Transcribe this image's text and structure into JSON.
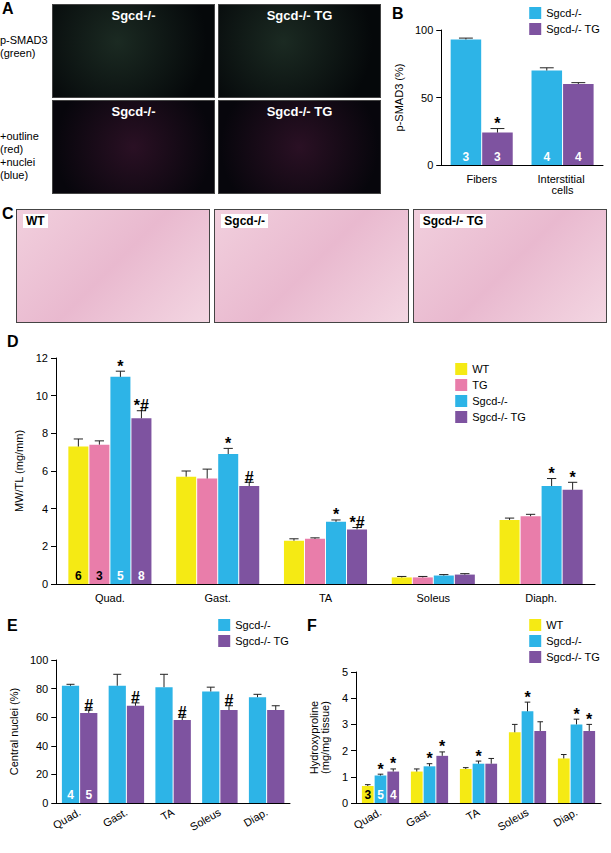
{
  "images": [
    {
      "panel": "A",
      "rows": [
        {
          "labels": [
            "p-SMAD3",
            "(green)"
          ],
          "panels": [
            "Sgcd-/-",
            "Sgcd-/- TG"
          ]
        },
        {
          "labels": [
            "+outline",
            "(red)",
            "+nuclei",
            "(blue)"
          ],
          "panels": [
            "Sgcd-/-",
            "Sgcd-/- TG"
          ]
        }
      ]
    },
    {
      "panel": "C",
      "panels": [
        "WT",
        "Sgcd-/-",
        "Sgcd-/- TG"
      ]
    }
  ],
  "chart_data": [
    {
      "type": "bar",
      "title": "B",
      "ylabel": "p-SMAD3 (%)",
      "categories": [
        "Fibers",
        "Interstitial cells"
      ],
      "series": [
        {
          "name": "Sgcd-/-",
          "color": "#2DB4E7",
          "values": [
            93,
            70
          ],
          "errors": [
            1,
            2
          ],
          "n": [
            3,
            4
          ]
        },
        {
          "name": "Sgcd-/- TG",
          "color": "#7E53A0",
          "values": [
            24,
            60
          ],
          "errors": [
            3,
            1
          ],
          "n": [
            3,
            4
          ],
          "marks": [
            "*",
            null
          ]
        }
      ],
      "ylim": [
        0,
        100
      ],
      "yticks": [
        0,
        50,
        100
      ],
      "grid": false,
      "legend": "top-right"
    },
    {
      "type": "bar",
      "title": "D",
      "ylabel": "MW/TL (mg/mm)",
      "categories": [
        "Quad.",
        "Gast.",
        "TA",
        "Soleus",
        "Diaph."
      ],
      "series": [
        {
          "name": "WT",
          "color": "#F5EA14",
          "values": [
            7.3,
            5.7,
            2.3,
            0.35,
            3.4
          ],
          "errors": [
            0.4,
            0.3,
            0.1,
            0.05,
            0.1
          ],
          "n": [
            6,
            null,
            null,
            null,
            null
          ]
        },
        {
          "name": "TG",
          "color": "#E97DAA",
          "values": [
            7.4,
            5.6,
            2.4,
            0.35,
            3.6
          ],
          "errors": [
            0.2,
            0.5,
            0.05,
            0.05,
            0.1
          ],
          "n": [
            3,
            null,
            null,
            null,
            null
          ]
        },
        {
          "name": "Sgcd-/-",
          "color": "#2DB4E7",
          "values": [
            11.0,
            6.9,
            3.3,
            0.45,
            5.2
          ],
          "errors": [
            0.3,
            0.3,
            0.1,
            0.05,
            0.4
          ],
          "n": [
            5,
            null,
            null,
            null,
            null
          ],
          "marks": [
            "*",
            "*",
            "*",
            null,
            "*"
          ]
        },
        {
          "name": "Sgcd-/- TG",
          "color": "#7E53A0",
          "values": [
            8.8,
            5.2,
            2.9,
            0.5,
            5.0
          ],
          "errors": [
            0.4,
            0.2,
            0.1,
            0.05,
            0.4
          ],
          "n": [
            8,
            null,
            null,
            null,
            null
          ],
          "marks": [
            "*#",
            "#",
            "*#",
            null,
            "*"
          ]
        }
      ],
      "ylim": [
        0,
        12
      ],
      "yticks": [
        0,
        2,
        4,
        6,
        8,
        10,
        12
      ],
      "grid": false,
      "legend": "top-right"
    },
    {
      "type": "bar",
      "title": "E",
      "ylabel": "Central nuclei (%)",
      "categories": [
        "Quad.",
        "Gast.",
        "TA",
        "Soleus",
        "Diap."
      ],
      "series": [
        {
          "name": "Sgcd-/-",
          "color": "#2DB4E7",
          "values": [
            82,
            82,
            81,
            78,
            74
          ],
          "errors": [
            1,
            8,
            9,
            3,
            2
          ],
          "n": [
            4,
            null,
            null,
            null,
            null
          ]
        },
        {
          "name": "Sgcd-/- TG",
          "color": "#7E53A0",
          "values": [
            63,
            68,
            58,
            65,
            65
          ],
          "errors": [
            2,
            2,
            2,
            3,
            3
          ],
          "n": [
            5,
            null,
            null,
            null,
            null
          ],
          "marks": [
            "#",
            "#",
            "#",
            "#",
            null
          ]
        }
      ],
      "ylim": [
        0,
        100
      ],
      "yticks": [
        0,
        20,
        40,
        60,
        80,
        100
      ],
      "grid": false,
      "legend": "top-right"
    },
    {
      "type": "bar",
      "title": "F",
      "ylabel": "Hydroxyproline\n(mg/mg tissue)",
      "categories": [
        "Quad.",
        "Gast.",
        "TA",
        "Soleus",
        "Diap."
      ],
      "series": [
        {
          "name": "WT",
          "color": "#F5EA14",
          "values": [
            0.65,
            1.2,
            1.3,
            2.7,
            1.7
          ],
          "errors": [
            0.05,
            0.1,
            0.05,
            0.3,
            0.15
          ],
          "n": [
            3,
            null,
            null,
            null,
            null
          ]
        },
        {
          "name": "Sgcd-/-",
          "color": "#2DB4E7",
          "values": [
            1.05,
            1.4,
            1.5,
            3.5,
            3.0
          ],
          "errors": [
            0.05,
            0.1,
            0.1,
            0.35,
            0.2
          ],
          "n": [
            5,
            null,
            null,
            null,
            null
          ],
          "marks": [
            "*",
            "*",
            "*",
            "*",
            "*"
          ]
        },
        {
          "name": "Sgcd-/- TG",
          "color": "#7E53A0",
          "values": [
            1.2,
            1.8,
            1.5,
            2.75,
            2.75
          ],
          "errors": [
            0.1,
            0.15,
            0.2,
            0.35,
            0.25
          ],
          "n": [
            4,
            null,
            null,
            null,
            null
          ],
          "marks": [
            "*",
            "*",
            null,
            null,
            "*"
          ]
        }
      ],
      "ylim": [
        0,
        5
      ],
      "yticks": [
        0,
        1,
        2,
        3,
        4,
        5
      ],
      "grid": false,
      "legend": "top-right"
    }
  ]
}
